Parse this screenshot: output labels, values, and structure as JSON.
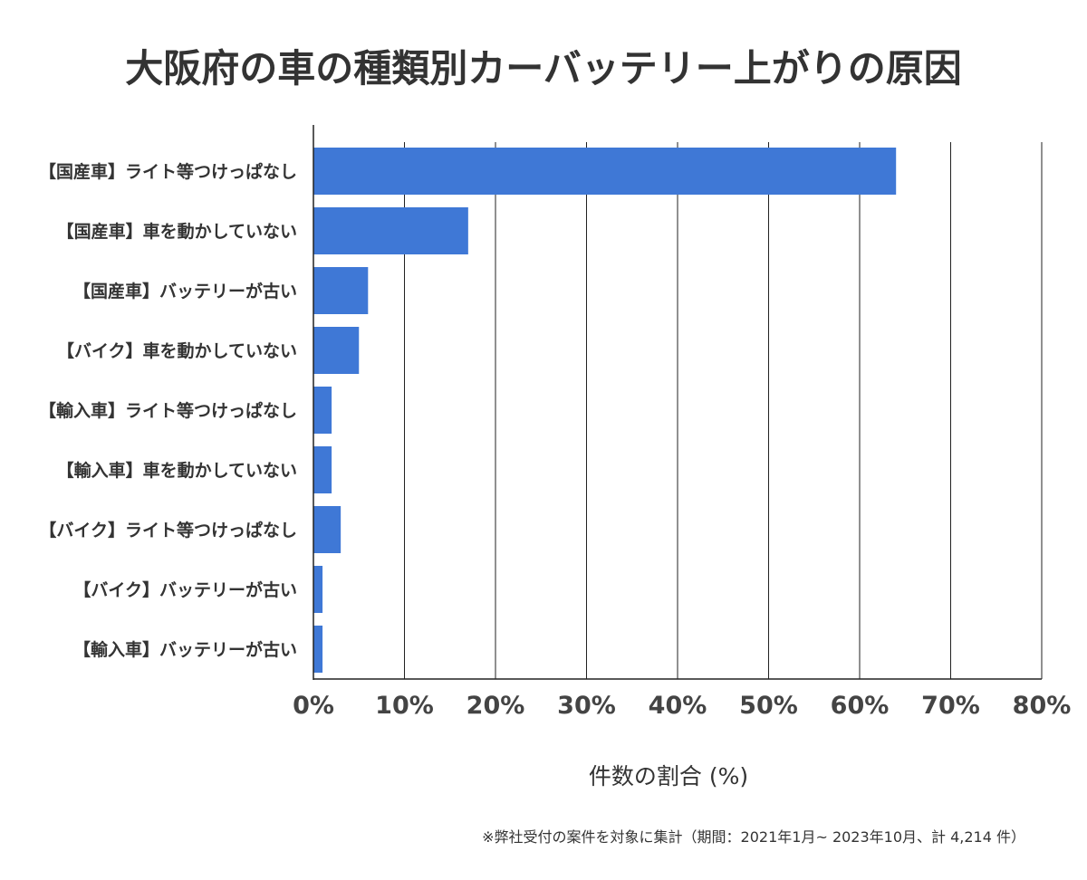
{
  "chart_data": {
    "type": "bar",
    "orientation": "horizontal",
    "title": "大阪府の車の種類別カーバッテリー上がりの原因",
    "categories": [
      "【国産車】ライト等つけっぱなし",
      "【国産車】車を動かしていない",
      "【国産車】バッテリーが古い",
      "【バイク】車を動かしていない",
      "【輸入車】ライト等つけっぱなし",
      "【輸入車】車を動かしていない",
      "【バイク】ライト等つけっぱなし",
      "【バイク】バッテリーが古い",
      "【輸入車】バッテリーが古い"
    ],
    "values": [
      64,
      17,
      6,
      5,
      2,
      2,
      3,
      1,
      1
    ],
    "xlabel": "件数の割合 (%)",
    "ylabel": "",
    "xlim": [
      0,
      80
    ],
    "xticks": [
      "0%",
      "10%",
      "20%",
      "30%",
      "40%",
      "50%",
      "60%",
      "70%",
      "80%"
    ],
    "grid": true,
    "bar_color": "#3f78d6",
    "footnote": "※弊社受付の案件を対象に集計（期間：2021年1月~ 2023年10月、計 4,214 件）"
  }
}
